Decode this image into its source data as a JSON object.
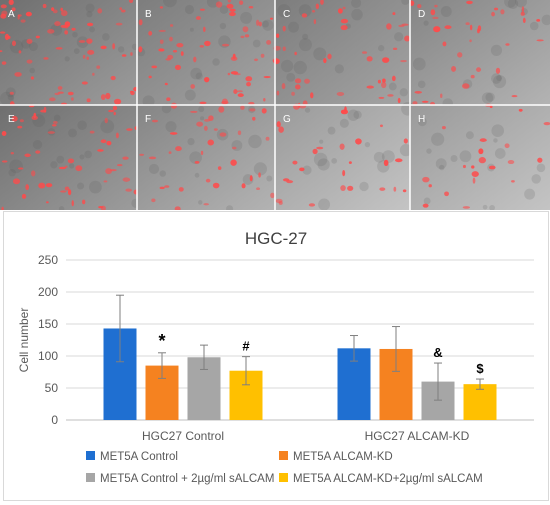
{
  "panels": {
    "labels": [
      "A",
      "B",
      "C",
      "D",
      "E",
      "F",
      "G",
      "H"
    ],
    "tint_color": "#ff4a4a"
  },
  "chart_data": {
    "type": "bar",
    "title": "HGC-27",
    "xlabel": "",
    "ylabel": "Cell number",
    "ylim": [
      0,
      250
    ],
    "yticks": [
      0,
      50,
      100,
      150,
      200,
      250
    ],
    "grid": true,
    "legend_position": "bottom",
    "categories": [
      "HGC27 Control",
      "HGC27 ALCAM-KD"
    ],
    "series": [
      {
        "name": "MET5A Control",
        "color": "#1f6fd1",
        "values": [
          143,
          112
        ],
        "errors": [
          52,
          20
        ],
        "annotations": [
          "",
          ""
        ]
      },
      {
        "name": "MET5A ALCAM-KD",
        "color": "#f58220",
        "values": [
          85,
          111
        ],
        "errors": [
          20,
          35
        ],
        "annotations": [
          "*",
          ""
        ]
      },
      {
        "name": "MET5A Control + 2µg/ml sALCAM",
        "color": "#a6a6a6",
        "values": [
          98,
          60
        ],
        "errors": [
          19,
          29
        ],
        "annotations": [
          "",
          "&"
        ]
      },
      {
        "name": "MET5A ALCAM-KD+2µg/ml sALCAM",
        "color": "#ffc000",
        "values": [
          77,
          56
        ],
        "errors": [
          22,
          8
        ],
        "annotations": [
          "#",
          "$"
        ]
      }
    ]
  }
}
